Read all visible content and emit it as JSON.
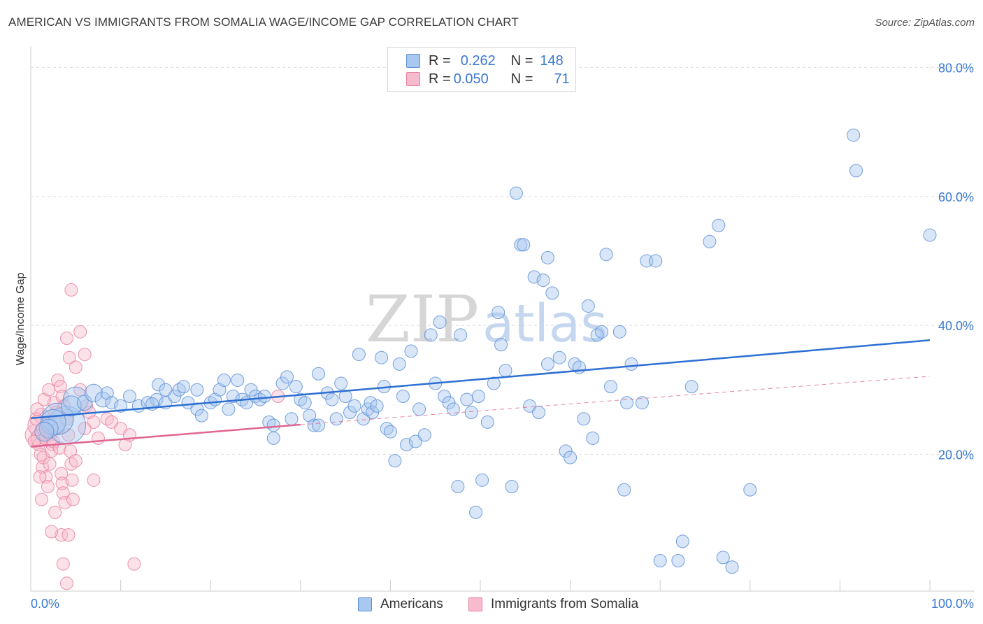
{
  "header": {
    "title": "AMERICAN VS IMMIGRANTS FROM SOMALIA WAGE/INCOME GAP CORRELATION CHART",
    "source": "Source: ZipAtlas.com"
  },
  "watermark": {
    "part1": "ZIP",
    "part2": "atlas"
  },
  "legend": {
    "r_label": "R =",
    "n_label": "N =",
    "americans": {
      "r": "0.262",
      "n": "148"
    },
    "somalia": {
      "r": "0.050",
      "n": "71"
    }
  },
  "bottom_legend": {
    "americans": "Americans",
    "somalia": "Immigrants from Somalia"
  },
  "colors": {
    "blue_fill": "#a9c8f0",
    "blue_stroke": "#5d8fd6",
    "blue_line": "#2d6fd2",
    "pink_fill": "#f6bccd",
    "pink_stroke": "#e8809f",
    "pink_line": "#e0668f",
    "grid": "#dedede",
    "tick_label": "#3a78d0"
  },
  "chart_data": {
    "type": "scatter",
    "title": "AMERICAN VS IMMIGRANTS FROM SOMALIA WAGE/INCOME GAP CORRELATION CHART",
    "xlabel": "",
    "ylabel": "Wage/Income Gap",
    "xlim": [
      0,
      100
    ],
    "ylim": [
      -1,
      82
    ],
    "x_tick_labels": [
      {
        "value": 0,
        "label": "0.0%"
      },
      {
        "value": 100,
        "label": "100.0%"
      }
    ],
    "y_tick_labels": [
      {
        "value": 20,
        "label": "20.0%"
      },
      {
        "value": 40,
        "label": "40.0%"
      },
      {
        "value": 60,
        "label": "60.0%"
      },
      {
        "value": 80,
        "label": "80.0%"
      }
    ],
    "grid": true,
    "legend_position": "top-center",
    "series": [
      {
        "name": "Americans",
        "r": 0.262,
        "n": 148,
        "trend": {
          "x": [
            0,
            100
          ],
          "y": [
            25.6,
            37.7
          ]
        },
        "points": [
          [
            4,
            24.5,
            3
          ],
          [
            3,
            25.5,
            2.5
          ],
          [
            2.5,
            25,
            2
          ],
          [
            2,
            24,
            1.5
          ],
          [
            1.5,
            23.5,
            1.5
          ],
          [
            5,
            28.5,
            2
          ],
          [
            4.5,
            27.5,
            1.6
          ],
          [
            6,
            28,
            1.2
          ],
          [
            7,
            29.5,
            1.4
          ],
          [
            8,
            28.5,
            1.2
          ],
          [
            8.5,
            29.5,
            1
          ],
          [
            9,
            28,
            1
          ],
          [
            10,
            27.5,
            1
          ],
          [
            11,
            29,
            1
          ],
          [
            12,
            27.5,
            1
          ],
          [
            13,
            28,
            1
          ],
          [
            14,
            28.5,
            1
          ],
          [
            15,
            28,
            1
          ],
          [
            16,
            29,
            1
          ],
          [
            13.5,
            27.8,
            1
          ],
          [
            14.2,
            30.8,
            1
          ],
          [
            15,
            30,
            1
          ],
          [
            16.5,
            30,
            1
          ],
          [
            17,
            30.5,
            1
          ],
          [
            17.5,
            28,
            1
          ],
          [
            18.5,
            27,
            1
          ],
          [
            19,
            26,
            1
          ],
          [
            20,
            28,
            1
          ],
          [
            18.5,
            30,
            1
          ],
          [
            20.5,
            28.5,
            1
          ],
          [
            21,
            30,
            1
          ],
          [
            21.5,
            31.5,
            1
          ],
          [
            22,
            27,
            1
          ],
          [
            22.5,
            29,
            1
          ],
          [
            23,
            31.5,
            1
          ],
          [
            23.5,
            28.5,
            1
          ],
          [
            24,
            28,
            1
          ],
          [
            24.5,
            30,
            1
          ],
          [
            25,
            29,
            1
          ],
          [
            25.5,
            28.5,
            1
          ],
          [
            26,
            29,
            1
          ],
          [
            26.5,
            25,
            1
          ],
          [
            27,
            22.5,
            1
          ],
          [
            27,
            24.5,
            1
          ],
          [
            28,
            31,
            1
          ],
          [
            28.5,
            32,
            1
          ],
          [
            29,
            25.5,
            1
          ],
          [
            29.5,
            30.5,
            1
          ],
          [
            30,
            28.5,
            1
          ],
          [
            30.5,
            28,
            1
          ],
          [
            31,
            26,
            1
          ],
          [
            31.5,
            24.5,
            1
          ],
          [
            32,
            24.5,
            1
          ],
          [
            32,
            32.5,
            1
          ],
          [
            33,
            29.5,
            1
          ],
          [
            33.5,
            28.5,
            1
          ],
          [
            34,
            25.5,
            1
          ],
          [
            34.5,
            31,
            1
          ],
          [
            35,
            29,
            1
          ],
          [
            35.5,
            26.5,
            1
          ],
          [
            36,
            27.5,
            1
          ],
          [
            36.5,
            35.5,
            1
          ],
          [
            37,
            25.5,
            1
          ],
          [
            37.5,
            27,
            1
          ],
          [
            37.8,
            28,
            1
          ],
          [
            38,
            26.5,
            1
          ],
          [
            38.5,
            27.5,
            1
          ],
          [
            39,
            35,
            1
          ],
          [
            39.3,
            30.5,
            1
          ],
          [
            39.6,
            24,
            1
          ],
          [
            40,
            23.5,
            1
          ],
          [
            40.5,
            19,
            1
          ],
          [
            41,
            34,
            1
          ],
          [
            41.4,
            29,
            1
          ],
          [
            41.8,
            21.5,
            1
          ],
          [
            42.3,
            36,
            1
          ],
          [
            42.8,
            22,
            1
          ],
          [
            43.2,
            27,
            1
          ],
          [
            43.8,
            23,
            1
          ],
          [
            44.5,
            38.5,
            1
          ],
          [
            45,
            31,
            1
          ],
          [
            45.5,
            40.5,
            1
          ],
          [
            46,
            29,
            1
          ],
          [
            46.5,
            28,
            1
          ],
          [
            47,
            27,
            1
          ],
          [
            47.5,
            15,
            1
          ],
          [
            47.8,
            38.5,
            1
          ],
          [
            48.5,
            28.5,
            1
          ],
          [
            49,
            26.5,
            1
          ],
          [
            49.5,
            11,
            1
          ],
          [
            49.8,
            29,
            1
          ],
          [
            50.2,
            16,
            1
          ],
          [
            50.8,
            25,
            1
          ],
          [
            51.5,
            31,
            1
          ],
          [
            52,
            42,
            1
          ],
          [
            52.3,
            37,
            1
          ],
          [
            52.8,
            33,
            1
          ],
          [
            53.5,
            15,
            1
          ],
          [
            54,
            60.5,
            1
          ],
          [
            54.5,
            52.5,
            1
          ],
          [
            54.8,
            52.5,
            1
          ],
          [
            55.5,
            27.5,
            1
          ],
          [
            56,
            47.5,
            1
          ],
          [
            56.5,
            26.5,
            1
          ],
          [
            57,
            47,
            1
          ],
          [
            57.5,
            50.5,
            1
          ],
          [
            57.5,
            34,
            1
          ],
          [
            58,
            45,
            1
          ],
          [
            58.8,
            35,
            1
          ],
          [
            59.5,
            20.5,
            1
          ],
          [
            60,
            19.5,
            1
          ],
          [
            60.5,
            34,
            1
          ],
          [
            61,
            33.5,
            1
          ],
          [
            61.5,
            25.5,
            1
          ],
          [
            62,
            43,
            1
          ],
          [
            62.5,
            22.5,
            1
          ],
          [
            63,
            38.5,
            1
          ],
          [
            63.5,
            39,
            1
          ],
          [
            64,
            51,
            1
          ],
          [
            64.5,
            30.5,
            1
          ],
          [
            65.5,
            39,
            1
          ],
          [
            66,
            14.5,
            1
          ],
          [
            66.3,
            28,
            1
          ],
          [
            66.8,
            34,
            1
          ],
          [
            68,
            28,
            1
          ],
          [
            68.5,
            50,
            1
          ],
          [
            69.5,
            50,
            1
          ],
          [
            70,
            3.5,
            1
          ],
          [
            72,
            3.5,
            1
          ],
          [
            72.5,
            6.5,
            1
          ],
          [
            73.5,
            30.5,
            1
          ],
          [
            75.5,
            53,
            1
          ],
          [
            76.5,
            55.5,
            1
          ],
          [
            77,
            4,
            1
          ],
          [
            78,
            2.5,
            1
          ],
          [
            80,
            14.5,
            1
          ],
          [
            91.5,
            69.5,
            1
          ],
          [
            91.8,
            64,
            1
          ],
          [
            100,
            54,
            1
          ]
        ]
      },
      {
        "name": "Immigrants from Somalia",
        "r": 0.05,
        "n": 71,
        "trend": {
          "x": [
            0,
            30
          ],
          "y": [
            21.2,
            24.6
          ]
        },
        "trend_dashed": {
          "x": [
            30,
            100
          ],
          "y": [
            24.6,
            32.1
          ]
        },
        "points": [
          [
            0.5,
            23,
            1.6
          ],
          [
            0.8,
            24.5,
            1.6
          ],
          [
            1,
            22.5,
            1.4
          ],
          [
            1.2,
            26,
            1.2
          ],
          [
            1.5,
            24,
            1.2
          ],
          [
            0.6,
            25.5,
            1
          ],
          [
            0.9,
            21.5,
            1
          ],
          [
            1.1,
            20,
            1
          ],
          [
            1.3,
            18,
            1
          ],
          [
            1.6,
            22.5,
            1
          ],
          [
            1.8,
            23.5,
            1
          ],
          [
            2,
            25,
            1
          ],
          [
            2.2,
            23,
            1
          ],
          [
            2.4,
            21.5,
            1
          ],
          [
            0.7,
            27,
            1
          ],
          [
            1.4,
            19.5,
            1
          ],
          [
            1.7,
            16.5,
            1
          ],
          [
            1.9,
            15,
            1
          ],
          [
            2.1,
            18.5,
            1
          ],
          [
            2.3,
            20.5,
            1
          ],
          [
            2.5,
            22,
            1
          ],
          [
            2.6,
            28,
            1
          ],
          [
            2.8,
            26.5,
            1
          ],
          [
            3,
            24,
            1
          ],
          [
            3.2,
            21,
            1
          ],
          [
            3.4,
            17,
            1
          ],
          [
            3.5,
            15.5,
            1
          ],
          [
            3.6,
            14,
            1
          ],
          [
            3.8,
            12.5,
            1
          ],
          [
            2.7,
            11,
            1
          ],
          [
            3,
            31.5,
            1
          ],
          [
            3.3,
            30.5,
            1
          ],
          [
            3.5,
            29,
            1
          ],
          [
            3.7,
            27.5,
            1
          ],
          [
            4,
            25.5,
            1
          ],
          [
            4.2,
            23,
            1
          ],
          [
            4.4,
            20.5,
            1
          ],
          [
            4.5,
            18.5,
            1
          ],
          [
            4.6,
            16,
            1
          ],
          [
            4.7,
            13,
            1
          ],
          [
            3.4,
            7.5,
            1
          ],
          [
            3.6,
            3,
            1
          ],
          [
            4.2,
            7.5,
            1
          ],
          [
            4,
            38,
            1
          ],
          [
            4.3,
            35,
            1
          ],
          [
            4.5,
            45.5,
            1
          ],
          [
            5.5,
            39,
            1
          ],
          [
            6,
            35.5,
            1
          ],
          [
            5,
            33.5,
            1
          ],
          [
            5.5,
            30,
            1
          ],
          [
            6.2,
            27.5,
            1
          ],
          [
            6.5,
            26.5,
            1
          ],
          [
            7,
            25,
            1
          ],
          [
            7.5,
            22.5,
            1
          ],
          [
            7,
            16,
            1
          ],
          [
            8.5,
            25.5,
            1
          ],
          [
            9,
            25,
            1
          ],
          [
            10,
            24,
            1
          ],
          [
            10.5,
            21.5,
            1
          ],
          [
            11,
            23,
            1
          ],
          [
            11.5,
            3,
            1
          ],
          [
            1,
            16.5,
            1
          ],
          [
            1.2,
            13,
            1
          ],
          [
            1.5,
            28.5,
            1
          ],
          [
            2,
            30,
            1
          ],
          [
            2.3,
            8,
            1
          ],
          [
            4,
            0,
            1
          ],
          [
            27.5,
            29,
            1
          ],
          [
            0.4,
            22,
            1
          ],
          [
            5,
            19,
            1
          ],
          [
            6,
            24,
            1
          ]
        ]
      }
    ]
  }
}
